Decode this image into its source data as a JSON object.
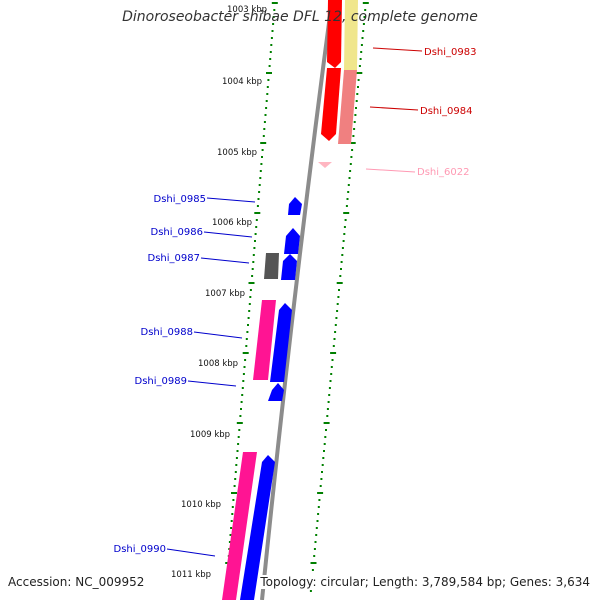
{
  "title": "Dinoroseobacter shibae DFL 12, complete genome",
  "accession": "Accession: NC_009952",
  "summary": "Topology: circular; Length: 3,789,584 bp; Genes: 3,634",
  "scale_labels": [
    "1003 kbp",
    "1004 kbp",
    "1005 kbp",
    "1006 kbp",
    "1007 kbp",
    "1008 kbp",
    "1009 kbp",
    "1010 kbp",
    "1011 kbp"
  ],
  "gene_labels": [
    "Dshi_0983",
    "Dshi_0984",
    "Dshi_6022",
    "Dshi_0985",
    "Dshi_0986",
    "Dshi_0987",
    "Dshi_0988",
    "Dshi_0989",
    "Dshi_0990"
  ],
  "colors": {
    "forward_cds": "#ff0000",
    "reverse_cds": "#0000ff",
    "forward_gene": "#f08080",
    "reverse_gene": "#ff1493",
    "pseudo": "#f0e68c",
    "rna": "#ffb6c1",
    "other": "#555555",
    "backbone": "#8c8c8c",
    "tick": "#008000"
  }
}
